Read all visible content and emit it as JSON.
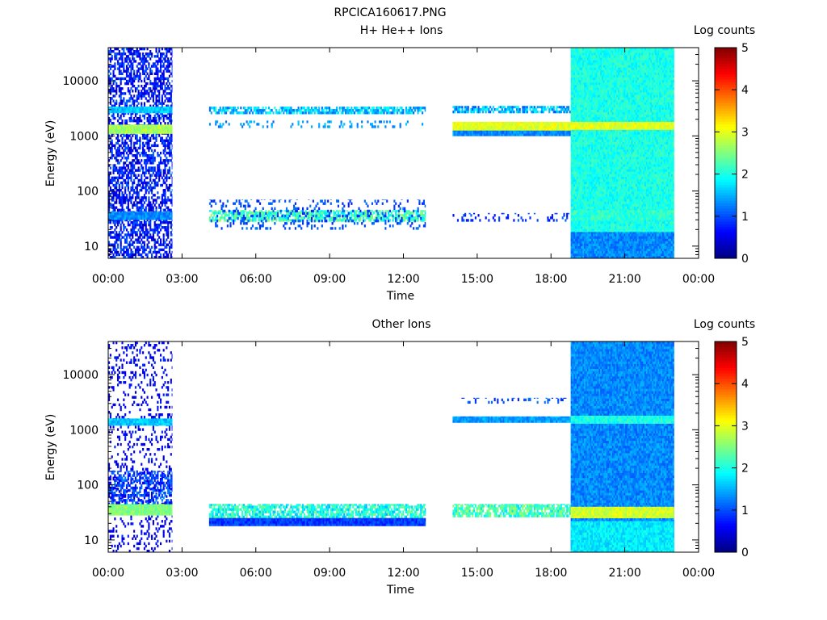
{
  "figure_title": "RPCICA160617.PNG",
  "chart_data": [
    {
      "type": "heatmap",
      "title": "H+ He++ Ions",
      "xlabel": "Time",
      "ylabel": "Energy (eV)",
      "colorbar_label": "Log counts",
      "xlim_hours": [
        0,
        24
      ],
      "x_ticks": [
        {
          "value": 0,
          "label": "00:00"
        },
        {
          "value": 3,
          "label": "03:00"
        },
        {
          "value": 6,
          "label": "06:00"
        },
        {
          "value": 9,
          "label": "09:00"
        },
        {
          "value": 12,
          "label": "12:00"
        },
        {
          "value": 15,
          "label": "15:00"
        },
        {
          "value": 18,
          "label": "18:00"
        },
        {
          "value": 21,
          "label": "21:00"
        },
        {
          "value": 24,
          "label": "00:00"
        }
      ],
      "ylim": [
        6,
        40000
      ],
      "y_scale": "log",
      "y_ticks": [
        {
          "value": 10,
          "label": "10"
        },
        {
          "value": 100,
          "label": "100"
        },
        {
          "value": 1000,
          "label": "1000"
        },
        {
          "value": 10000,
          "label": "10000"
        }
      ],
      "color_scale": {
        "min": 0,
        "max": 5,
        "ticks": [
          "0",
          "1",
          "2",
          "3",
          "4",
          "5"
        ],
        "colors": [
          "#00007f",
          "#0000ff",
          "#007fff",
          "#00ffff",
          "#7fff7f",
          "#ffff00",
          "#ff7f00",
          "#ff0000",
          "#7f0000"
        ]
      },
      "bands": [
        {
          "t0": 0.0,
          "t1": 2.6,
          "e0": 6,
          "e1": 40000,
          "level": 0.7,
          "style": "noise"
        },
        {
          "t0": 0.0,
          "t1": 2.6,
          "e0": 1100,
          "e1": 1600,
          "level": 2.7
        },
        {
          "t0": 0.0,
          "t1": 2.6,
          "e0": 2600,
          "e1": 3400,
          "level": 1.6
        },
        {
          "t0": 0.0,
          "t1": 2.6,
          "e0": 30,
          "e1": 42,
          "level": 1.3
        },
        {
          "t0": 4.1,
          "t1": 12.9,
          "e0": 2500,
          "e1": 3400,
          "level": 1.6,
          "style": "patchy"
        },
        {
          "t0": 4.1,
          "t1": 12.9,
          "e0": 1400,
          "e1": 1900,
          "level": 1.4,
          "style": "sparse"
        },
        {
          "t0": 4.1,
          "t1": 12.9,
          "e0": 28,
          "e1": 45,
          "level": 2.2,
          "style": "patchy"
        },
        {
          "t0": 4.1,
          "t1": 12.9,
          "e0": 20,
          "e1": 70,
          "level": 1.0,
          "style": "sparse"
        },
        {
          "t0": 14.0,
          "t1": 18.8,
          "e0": 2600,
          "e1": 3500,
          "level": 1.5,
          "style": "patchy"
        },
        {
          "t0": 14.0,
          "t1": 18.8,
          "e0": 1250,
          "e1": 1800,
          "level": 3.0
        },
        {
          "t0": 14.0,
          "t1": 18.8,
          "e0": 1000,
          "e1": 1250,
          "level": 1.3
        },
        {
          "t0": 14.0,
          "t1": 18.8,
          "e0": 28,
          "e1": 40,
          "level": 0.9,
          "style": "sparse"
        },
        {
          "t0": 18.8,
          "t1": 23.0,
          "e0": 6,
          "e1": 40000,
          "level": 2.0
        },
        {
          "t0": 18.8,
          "t1": 23.0,
          "e0": 1300,
          "e1": 1800,
          "level": 3.0
        },
        {
          "t0": 18.8,
          "t1": 23.0,
          "e0": 6,
          "e1": 18,
          "level": 1.3
        },
        {
          "t0": 18.8,
          "t1": 23.0,
          "e0": 30,
          "e1": 45,
          "level": 2.1
        }
      ]
    },
    {
      "type": "heatmap",
      "title": "Other Ions",
      "xlabel": "Time",
      "ylabel": "Energy (eV)",
      "colorbar_label": "Log counts",
      "xlim_hours": [
        0,
        24
      ],
      "x_ticks": [
        {
          "value": 0,
          "label": "00:00"
        },
        {
          "value": 3,
          "label": "03:00"
        },
        {
          "value": 6,
          "label": "06:00"
        },
        {
          "value": 9,
          "label": "09:00"
        },
        {
          "value": 12,
          "label": "12:00"
        },
        {
          "value": 15,
          "label": "15:00"
        },
        {
          "value": 18,
          "label": "18:00"
        },
        {
          "value": 21,
          "label": "21:00"
        },
        {
          "value": 24,
          "label": "00:00"
        }
      ],
      "ylim": [
        6,
        40000
      ],
      "y_scale": "log",
      "y_ticks": [
        {
          "value": 10,
          "label": "10"
        },
        {
          "value": 100,
          "label": "100"
        },
        {
          "value": 1000,
          "label": "1000"
        },
        {
          "value": 10000,
          "label": "10000"
        }
      ],
      "color_scale": {
        "min": 0,
        "max": 5,
        "ticks": [
          "0",
          "1",
          "2",
          "3",
          "4",
          "5"
        ],
        "colors": [
          "#00007f",
          "#0000ff",
          "#007fff",
          "#00ffff",
          "#7fff7f",
          "#ffff00",
          "#ff7f00",
          "#ff0000",
          "#7f0000"
        ]
      },
      "bands": [
        {
          "t0": 0.0,
          "t1": 2.6,
          "e0": 6,
          "e1": 40000,
          "level": 0.6,
          "style": "sparse"
        },
        {
          "t0": 0.0,
          "t1": 2.6,
          "e0": 1200,
          "e1": 1600,
          "level": 1.6
        },
        {
          "t0": 0.0,
          "t1": 2.6,
          "e0": 28,
          "e1": 45,
          "level": 2.5
        },
        {
          "t0": 0.0,
          "t1": 2.6,
          "e0": 45,
          "e1": 180,
          "level": 0.9,
          "style": "noise"
        },
        {
          "t0": 4.1,
          "t1": 12.9,
          "e0": 25,
          "e1": 45,
          "level": 2.0,
          "style": "patchy"
        },
        {
          "t0": 4.1,
          "t1": 12.9,
          "e0": 18,
          "e1": 25,
          "level": 0.9
        },
        {
          "t0": 14.0,
          "t1": 18.8,
          "e0": 1350,
          "e1": 1750,
          "level": 1.4
        },
        {
          "t0": 14.0,
          "t1": 18.8,
          "e0": 3000,
          "e1": 3800,
          "level": 1.0,
          "style": "sparse"
        },
        {
          "t0": 14.0,
          "t1": 18.8,
          "e0": 26,
          "e1": 45,
          "level": 2.2,
          "style": "patchy"
        },
        {
          "t0": 18.8,
          "t1": 23.0,
          "e0": 6,
          "e1": 40000,
          "level": 1.3
        },
        {
          "t0": 18.8,
          "t1": 23.0,
          "e0": 1300,
          "e1": 1800,
          "level": 2.0
        },
        {
          "t0": 18.8,
          "t1": 23.0,
          "e0": 25,
          "e1": 40,
          "level": 2.9
        },
        {
          "t0": 18.8,
          "t1": 23.0,
          "e0": 6,
          "e1": 22,
          "level": 1.8
        }
      ]
    }
  ]
}
